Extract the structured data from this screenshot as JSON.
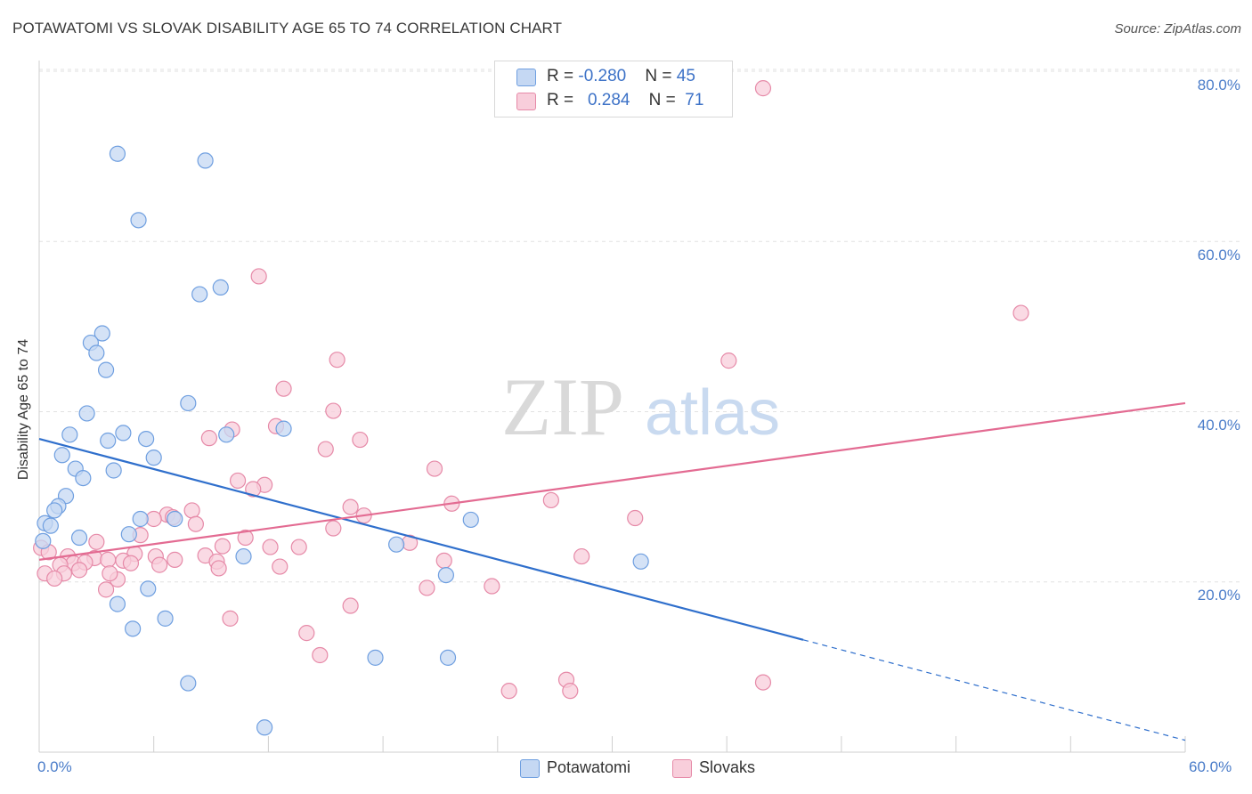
{
  "title": "POTAWATOMI VS SLOVAK DISABILITY AGE 65 TO 74 CORRELATION CHART",
  "source": "Source: ZipAtlas.com",
  "watermark": {
    "zip": "ZIP",
    "atlas": "atlas"
  },
  "legend": {
    "rows": [
      {
        "r_label": "R = ",
        "r_value": "-0.280",
        "n_label": "N = ",
        "n_value": "45"
      },
      {
        "r_label": "R = ",
        "r_value": "0.284",
        "n_label": "N = ",
        "n_value": "71"
      }
    ]
  },
  "colors": {
    "blue": "#6f9fe0",
    "blue_fill": "#c5d8f3",
    "blue_line": "#2f6fcc",
    "pink": "#e68aa8",
    "pink_fill": "#f8cedb",
    "pink_line": "#e36b92",
    "tick": "#4a7cc9"
  },
  "chart_data": {
    "type": "scatter",
    "title": "POTAWATOMI VS SLOVAK DISABILITY AGE 65 TO 74 CORRELATION CHART",
    "xlabel": "",
    "ylabel": "Disability Age 65 to 74",
    "xlim": [
      0,
      60
    ],
    "ylim": [
      0,
      82
    ],
    "x_tick_labels": [
      "0.0%",
      "60.0%"
    ],
    "y_tick_labels": [
      "20.0%",
      "40.0%",
      "60.0%",
      "80.0%"
    ],
    "y_ticks": [
      20,
      40,
      60,
      80
    ],
    "legend_labels": [
      "Potawatomi",
      "Slovaks"
    ],
    "series": [
      {
        "name": "Potawatomi",
        "color": "blue",
        "r": -0.28,
        "n": 45,
        "trend": {
          "x0": 0,
          "y0": 36.8,
          "x1": 40,
          "y1": 13.2,
          "dash_to_x": 60,
          "dash_to_y": 1.4
        },
        "points": [
          [
            4.1,
            70.3
          ],
          [
            8.7,
            69.5
          ],
          [
            5.2,
            62.5
          ],
          [
            8.4,
            53.8
          ],
          [
            9.5,
            54.6
          ],
          [
            3.3,
            49.2
          ],
          [
            2.7,
            48.1
          ],
          [
            3.0,
            46.9
          ],
          [
            3.5,
            44.9
          ],
          [
            7.8,
            41.0
          ],
          [
            2.5,
            39.8
          ],
          [
            12.8,
            38.0
          ],
          [
            1.6,
            37.3
          ],
          [
            4.4,
            37.5
          ],
          [
            9.8,
            37.3
          ],
          [
            3.6,
            36.6
          ],
          [
            5.6,
            36.8
          ],
          [
            6.0,
            34.6
          ],
          [
            1.2,
            34.9
          ],
          [
            1.9,
            33.3
          ],
          [
            3.9,
            33.1
          ],
          [
            2.3,
            32.2
          ],
          [
            1.4,
            30.1
          ],
          [
            1.0,
            28.9
          ],
          [
            0.8,
            28.4
          ],
          [
            0.3,
            26.9
          ],
          [
            0.6,
            26.6
          ],
          [
            5.3,
            27.4
          ],
          [
            7.1,
            27.4
          ],
          [
            4.7,
            25.6
          ],
          [
            2.1,
            25.2
          ],
          [
            0.2,
            24.8
          ],
          [
            18.7,
            24.4
          ],
          [
            22.6,
            27.3
          ],
          [
            10.7,
            23.0
          ],
          [
            31.5,
            22.4
          ],
          [
            21.3,
            20.8
          ],
          [
            5.7,
            19.2
          ],
          [
            4.1,
            17.4
          ],
          [
            6.6,
            15.7
          ],
          [
            4.9,
            14.5
          ],
          [
            17.6,
            11.1
          ],
          [
            21.4,
            11.1
          ],
          [
            7.8,
            8.1
          ],
          [
            11.8,
            2.9
          ]
        ]
      },
      {
        "name": "Slovaks",
        "color": "pink",
        "r": 0.284,
        "n": 71,
        "trend": {
          "x0": 0,
          "y0": 22.6,
          "x1": 60,
          "y1": 41.0
        },
        "points": [
          [
            37.9,
            78.0
          ],
          [
            11.5,
            55.9
          ],
          [
            51.4,
            51.6
          ],
          [
            15.6,
            46.1
          ],
          [
            36.1,
            46.0
          ],
          [
            12.8,
            42.7
          ],
          [
            15.4,
            40.1
          ],
          [
            12.4,
            38.3
          ],
          [
            10.1,
            37.9
          ],
          [
            8.9,
            36.9
          ],
          [
            16.8,
            36.7
          ],
          [
            15.0,
            35.6
          ],
          [
            20.7,
            33.3
          ],
          [
            10.4,
            31.9
          ],
          [
            11.8,
            31.4
          ],
          [
            11.2,
            30.9
          ],
          [
            26.8,
            29.6
          ],
          [
            21.6,
            29.2
          ],
          [
            16.3,
            28.8
          ],
          [
            8.0,
            28.4
          ],
          [
            6.7,
            27.9
          ],
          [
            17.0,
            27.8
          ],
          [
            7.0,
            27.6
          ],
          [
            31.2,
            27.5
          ],
          [
            6.0,
            27.4
          ],
          [
            8.2,
            26.8
          ],
          [
            15.4,
            26.3
          ],
          [
            5.3,
            25.5
          ],
          [
            10.8,
            25.2
          ],
          [
            3.0,
            24.7
          ],
          [
            12.1,
            24.1
          ],
          [
            13.6,
            24.1
          ],
          [
            9.6,
            24.2
          ],
          [
            19.4,
            24.6
          ],
          [
            5.0,
            23.3
          ],
          [
            8.7,
            23.1
          ],
          [
            6.1,
            23.0
          ],
          [
            1.5,
            23.0
          ],
          [
            9.3,
            22.4
          ],
          [
            2.9,
            22.8
          ],
          [
            7.1,
            22.6
          ],
          [
            4.4,
            22.5
          ],
          [
            1.8,
            22.2
          ],
          [
            1.1,
            22.0
          ],
          [
            2.4,
            22.3
          ],
          [
            3.6,
            22.6
          ],
          [
            6.3,
            22.0
          ],
          [
            12.6,
            21.8
          ],
          [
            9.4,
            21.6
          ],
          [
            4.8,
            22.2
          ],
          [
            2.1,
            21.4
          ],
          [
            1.3,
            21.0
          ],
          [
            0.3,
            21.0
          ],
          [
            0.8,
            20.4
          ],
          [
            21.2,
            22.5
          ],
          [
            28.4,
            23.0
          ],
          [
            23.7,
            19.5
          ],
          [
            20.3,
            19.3
          ],
          [
            3.5,
            19.1
          ],
          [
            16.3,
            17.2
          ],
          [
            10.0,
            15.7
          ],
          [
            14.0,
            14.0
          ],
          [
            14.7,
            11.4
          ],
          [
            4.1,
            20.3
          ],
          [
            3.7,
            21.0
          ],
          [
            27.6,
            8.5
          ],
          [
            37.9,
            8.2
          ],
          [
            24.6,
            7.2
          ],
          [
            27.8,
            7.2
          ],
          [
            0.1,
            24.0
          ],
          [
            0.5,
            23.5
          ]
        ]
      }
    ]
  }
}
